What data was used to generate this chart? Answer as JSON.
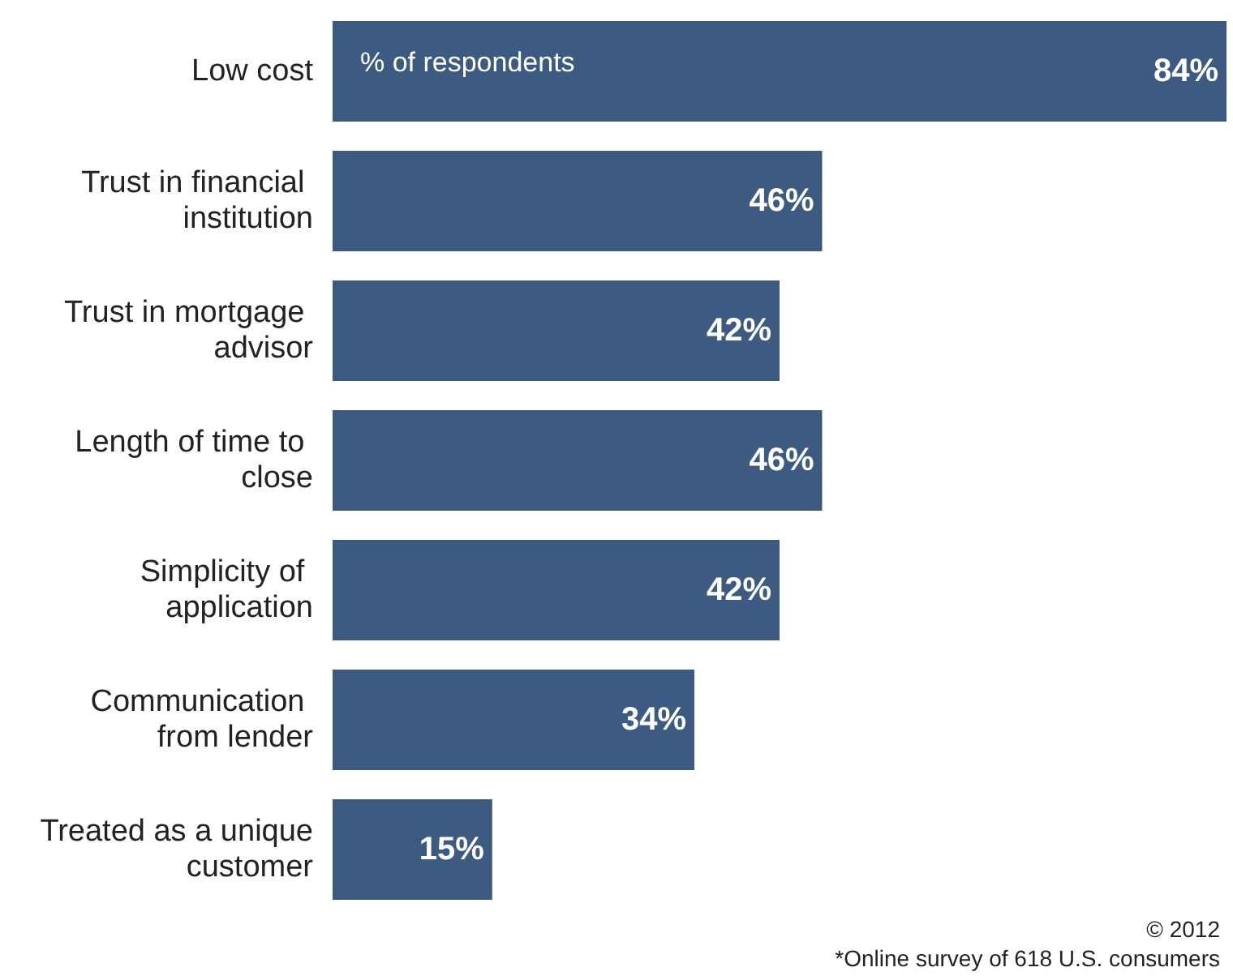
{
  "chart_data": {
    "type": "bar",
    "orientation": "horizontal",
    "categories": [
      "Low cost",
      "Trust in financial institution",
      "Trust in mortgage advisor",
      "Length of time to close",
      "Simplicity of application",
      "Communication from lender",
      "Treated as a unique customer"
    ],
    "values": [
      84,
      46,
      42,
      46,
      42,
      34,
      15
    ],
    "color": "#3d5a80",
    "value_labels": [
      "84%",
      "46%",
      "42%",
      "46%",
      "42%",
      "34%",
      "15%"
    ],
    "annotations": [
      "% of respondents",
      "© 2012",
      "*Online survey of 618 U.S. consumers"
    ]
  }
}
